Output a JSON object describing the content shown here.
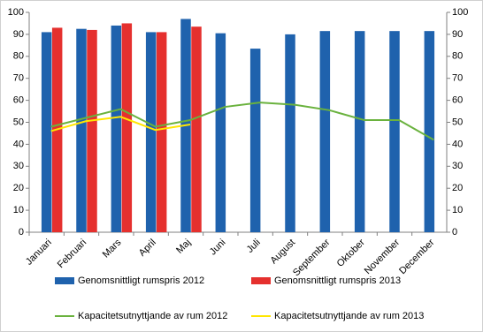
{
  "chart_data": {
    "type": "bar",
    "categories": [
      "Januari",
      "Februari",
      "Mars",
      "April",
      "Maj",
      "Juni",
      "Juli",
      "August",
      "September",
      "Oktober",
      "November",
      "December"
    ],
    "series": [
      {
        "name": "Genomsnittligt rumspris 2012",
        "type": "bar",
        "color": "#1f62ad",
        "values": [
          91,
          92.5,
          94,
          91,
          97,
          90.5,
          83.5,
          90,
          91.5,
          91.5,
          91.5,
          91.5
        ]
      },
      {
        "name": "Genomsnittligt rumspris 2013",
        "type": "bar",
        "color": "#e5302e",
        "values": [
          93,
          92,
          95,
          91,
          93.5,
          null,
          null,
          null,
          null,
          null,
          null,
          null
        ]
      },
      {
        "name": "Kapacitetsutnyttjande av rum 2012",
        "type": "line",
        "axis": "y2",
        "color": "#6ab23e",
        "values": [
          48,
          52,
          56,
          48,
          51,
          57,
          59,
          58,
          55.5,
          51,
          51,
          42
        ]
      },
      {
        "name": "Kapacitetsutnyttjande av rum 2013",
        "type": "line",
        "axis": "y2",
        "color": "#ffe600",
        "values": [
          46,
          50.5,
          52.5,
          46.5,
          49,
          null,
          null,
          null,
          null,
          null,
          null,
          null
        ]
      }
    ],
    "ylim": [
      0,
      100
    ],
    "yticks": [
      0,
      10,
      20,
      30,
      40,
      50,
      60,
      70,
      80,
      90,
      100
    ],
    "y2lim": [
      0,
      100
    ],
    "y2ticks": [
      0,
      10,
      20,
      30,
      40,
      50,
      60,
      70,
      80,
      90,
      100
    ],
    "grid": false,
    "legend": "bottom"
  }
}
